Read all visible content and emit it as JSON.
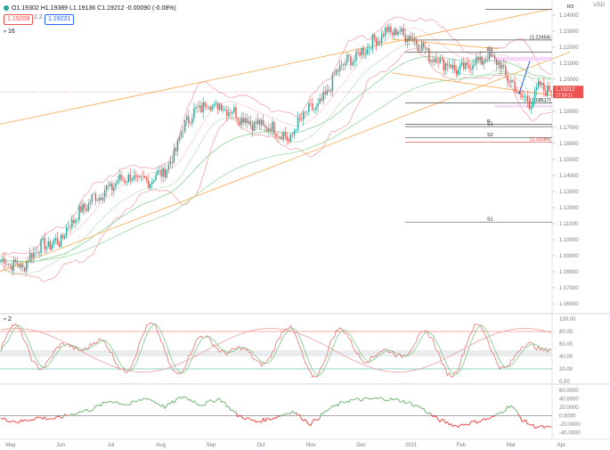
{
  "toolbar": {
    "ohlc_text": "O1.19302 H1.19389 L1.19136 C1.19212 -0.00090 (-0.08%)",
    "bid": "1.19209",
    "ask": "1.19231",
    "spread": "2.2"
  },
  "currency": "USD",
  "indicator_labels": {
    "main": "16",
    "stoch": "2"
  },
  "colors": {
    "up": "#26a69a",
    "down": "#ef5350",
    "channel": "#f7b15e",
    "bollinger": "#f4a7ab",
    "ema_green": "#8fcf99",
    "pivot_line": "#555555",
    "pivot_red": "#e53935",
    "stoch_k": "#e57373",
    "stoch_d": "#81c784",
    "momentum": "#7cb97f"
  },
  "chart_data": {
    "type": "candlestick",
    "x_labels": [
      "May",
      "Jun",
      "Jul",
      "Aug",
      "Sep",
      "Oct",
      "Nov",
      "Dec",
      "2021",
      "Feb",
      "Mar",
      "Apr"
    ],
    "y_ticks": [
      "1.24000",
      "1.23000",
      "1.22000",
      "1.21000",
      "1.20000",
      "1.19000",
      "1.18000",
      "1.17000",
      "1.16000",
      "1.15000",
      "1.14000",
      "1.13000",
      "1.12000",
      "1.11000",
      "1.10000",
      "1.09000",
      "1.08000",
      "1.07000",
      "1.06000"
    ],
    "ylim": [
      1.055,
      1.245
    ],
    "last_price": "1.19212",
    "last_price_sub": "17:50:11",
    "price_path_anchors": [
      [
        0,
        1.087
      ],
      [
        12,
        1.083
      ],
      [
        20,
        1.095
      ],
      [
        32,
        1.099
      ],
      [
        40,
        1.113
      ],
      [
        50,
        1.125
      ],
      [
        58,
        1.131
      ],
      [
        68,
        1.139
      ],
      [
        80,
        1.136
      ],
      [
        92,
        1.145
      ],
      [
        102,
        1.175
      ],
      [
        112,
        1.185
      ],
      [
        124,
        1.182
      ],
      [
        132,
        1.176
      ],
      [
        140,
        1.172
      ],
      [
        150,
        1.169
      ],
      [
        158,
        1.162
      ],
      [
        166,
        1.178
      ],
      [
        176,
        1.185
      ],
      [
        186,
        1.208
      ],
      [
        196,
        1.215
      ],
      [
        206,
        1.225
      ],
      [
        212,
        1.23
      ],
      [
        220,
        1.229
      ],
      [
        228,
        1.224
      ],
      [
        236,
        1.214
      ],
      [
        244,
        1.21
      ],
      [
        252,
        1.205
      ],
      [
        260,
        1.211
      ],
      [
        270,
        1.214
      ],
      [
        276,
        1.205
      ],
      [
        284,
        1.191
      ],
      [
        290,
        1.185
      ],
      [
        296,
        1.196
      ],
      [
        302,
        1.1921
      ]
    ],
    "pivots": [
      {
        "label": "R3",
        "value": 1.2437
      },
      {
        "label": "1.22454",
        "value": 1.2245
      },
      {
        "label": "R1",
        "value": 1.217
      },
      {
        "label": "1.18517",
        "value": 1.1852
      },
      {
        "label": "P",
        "value": 1.172
      },
      {
        "label": "S1",
        "value": 1.1705
      },
      {
        "label": "S2",
        "value": 1.1635
      },
      {
        "label": "1.16084",
        "value": 1.1608
      },
      {
        "label": "S1",
        "value": 1.111
      }
    ],
    "stoch": {
      "y_ticks": [
        "100.00",
        "80.00",
        "60.00",
        "40.00",
        "20.00",
        "0.00"
      ],
      "ylim": [
        0,
        100
      ]
    },
    "momentum": {
      "y_ticks": [
        "60.0000",
        "40.0000",
        "20.0000",
        "0.0000",
        "-20.0000",
        "-40.0000"
      ],
      "ylim": [
        -50,
        70
      ],
      "anchors": [
        [
          0,
          -8
        ],
        [
          10,
          -15
        ],
        [
          20,
          -5
        ],
        [
          30,
          -8
        ],
        [
          40,
          5
        ],
        [
          50,
          15
        ],
        [
          60,
          35
        ],
        [
          70,
          25
        ],
        [
          80,
          42
        ],
        [
          90,
          20
        ],
        [
          100,
          45
        ],
        [
          110,
          25
        ],
        [
          120,
          40
        ],
        [
          130,
          0
        ],
        [
          140,
          -15
        ],
        [
          150,
          -5
        ],
        [
          160,
          10
        ],
        [
          170,
          -20
        ],
        [
          180,
          15
        ],
        [
          190,
          35
        ],
        [
          200,
          38
        ],
        [
          210,
          40
        ],
        [
          220,
          35
        ],
        [
          230,
          20
        ],
        [
          240,
          -10
        ],
        [
          250,
          -25
        ],
        [
          260,
          -15
        ],
        [
          270,
          -5
        ],
        [
          280,
          25
        ],
        [
          286,
          -10
        ],
        [
          292,
          -25
        ],
        [
          302,
          -30
        ]
      ]
    }
  }
}
